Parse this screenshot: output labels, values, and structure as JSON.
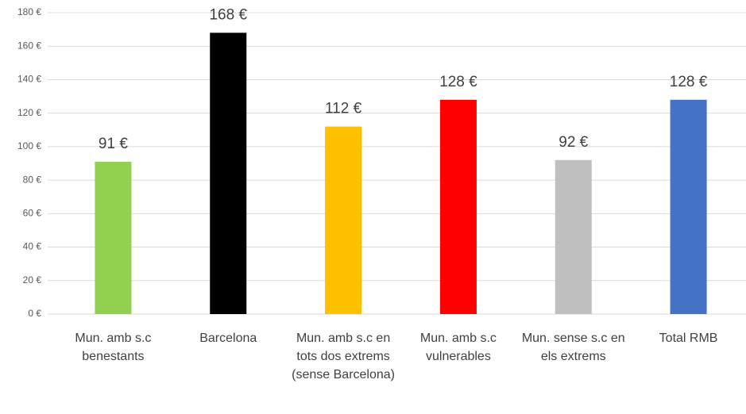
{
  "chart_data": {
    "type": "bar",
    "categories": [
      "Mun. amb s.c benestants",
      "Barcelona",
      "Mun. amb s.c en tots dos extrems (sense Barcelona)",
      "Mun. amb s.c vulnerables",
      "Mun. sense s.c en els extrems",
      "Total RMB"
    ],
    "values": [
      91,
      168,
      112,
      128,
      92,
      128
    ],
    "value_labels": [
      "91 €",
      "168 €",
      "112 €",
      "128 €",
      "92 €",
      "128 €"
    ],
    "colors": [
      "#92d050",
      "#000000",
      "#ffc000",
      "#ff0000",
      "#bfbfbf",
      "#4472c4"
    ],
    "ylim": [
      0,
      180
    ],
    "yticks": [
      {
        "value": 0,
        "label": "0 €"
      },
      {
        "value": 20,
        "label": "20 €"
      },
      {
        "value": 40,
        "label": "40 €"
      },
      {
        "value": 60,
        "label": "60 €"
      },
      {
        "value": 80,
        "label": "80 €"
      },
      {
        "value": 100,
        "label": "100 €"
      },
      {
        "value": 120,
        "label": "120 €"
      },
      {
        "value": 140,
        "label": "140 €"
      },
      {
        "value": 160,
        "label": "160 €"
      },
      {
        "value": 180,
        "label": "180 €"
      }
    ],
    "grid": true
  }
}
